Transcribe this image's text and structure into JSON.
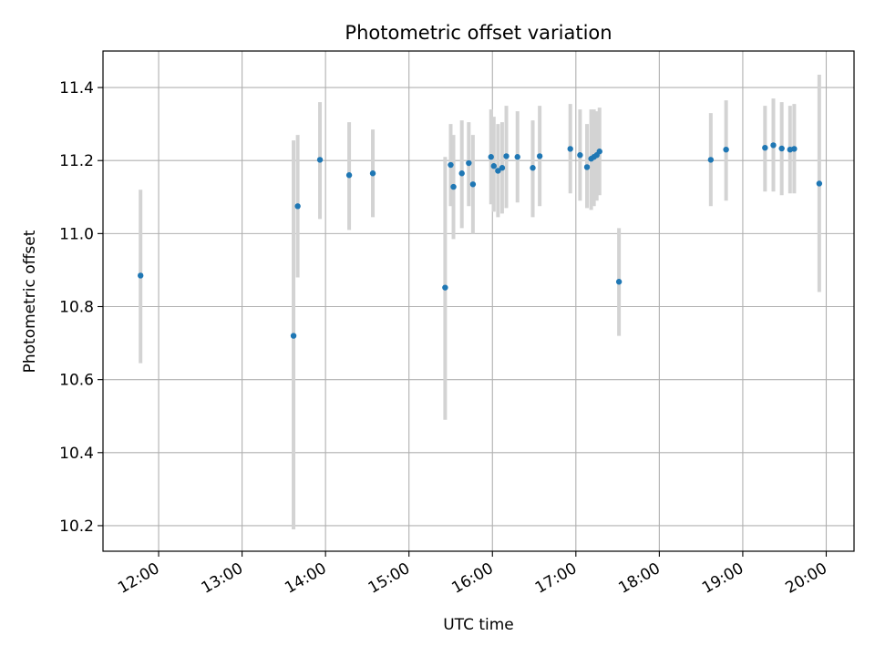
{
  "chart_data": {
    "type": "scatter",
    "title": "Photometric offset variation",
    "xlabel": "UTC time",
    "ylabel": "Photometric offset",
    "x_axis_type": "time",
    "xlim": [
      "11:20",
      "20:20"
    ],
    "ylim": [
      10.13,
      11.5
    ],
    "grid": true,
    "x_ticks": [
      "12:00",
      "13:00",
      "14:00",
      "15:00",
      "16:00",
      "17:00",
      "18:00",
      "19:00",
      "20:00"
    ],
    "y_ticks": [
      "10.2",
      "10.4",
      "10.6",
      "10.8",
      "11.0",
      "11.2",
      "11.4"
    ],
    "colors": {
      "point": "#1f77b4",
      "errorbar": "#d3d3d3",
      "grid": "#b0b0b0"
    },
    "series": [
      {
        "points": [
          {
            "t": "11:47",
            "y": 10.885,
            "ylo": 10.645,
            "yhi": 11.12
          },
          {
            "t": "13:37",
            "y": 10.72,
            "ylo": 10.19,
            "yhi": 11.255
          },
          {
            "t": "13:40",
            "y": 11.075,
            "ylo": 10.88,
            "yhi": 11.27
          },
          {
            "t": "13:56",
            "y": 11.202,
            "ylo": 11.04,
            "yhi": 11.36
          },
          {
            "t": "14:17",
            "y": 11.16,
            "ylo": 11.01,
            "yhi": 11.305
          },
          {
            "t": "14:34",
            "y": 11.165,
            "ylo": 11.045,
            "yhi": 11.285
          },
          {
            "t": "15:26",
            "y": 10.852,
            "ylo": 10.49,
            "yhi": 11.21
          },
          {
            "t": "15:30",
            "y": 11.188,
            "ylo": 11.075,
            "yhi": 11.3
          },
          {
            "t": "15:32",
            "y": 11.128,
            "ylo": 10.985,
            "yhi": 11.27
          },
          {
            "t": "15:38",
            "y": 11.165,
            "ylo": 11.015,
            "yhi": 11.31
          },
          {
            "t": "15:43",
            "y": 11.193,
            "ylo": 11.075,
            "yhi": 11.305
          },
          {
            "t": "15:46",
            "y": 11.135,
            "ylo": 11.0,
            "yhi": 11.27
          },
          {
            "t": "15:59",
            "y": 11.21,
            "ylo": 11.08,
            "yhi": 11.34
          },
          {
            "t": "16:01",
            "y": 11.185,
            "ylo": 11.06,
            "yhi": 11.32
          },
          {
            "t": "16:04",
            "y": 11.172,
            "ylo": 11.045,
            "yhi": 11.3
          },
          {
            "t": "16:07",
            "y": 11.18,
            "ylo": 11.055,
            "yhi": 11.305
          },
          {
            "t": "16:10",
            "y": 11.212,
            "ylo": 11.07,
            "yhi": 11.35
          },
          {
            "t": "16:18",
            "y": 11.21,
            "ylo": 11.085,
            "yhi": 11.335
          },
          {
            "t": "16:29",
            "y": 11.18,
            "ylo": 11.045,
            "yhi": 11.31
          },
          {
            "t": "16:34",
            "y": 11.212,
            "ylo": 11.075,
            "yhi": 11.35
          },
          {
            "t": "16:56",
            "y": 11.232,
            "ylo": 11.11,
            "yhi": 11.355
          },
          {
            "t": "17:03",
            "y": 11.215,
            "ylo": 11.09,
            "yhi": 11.34
          },
          {
            "t": "17:08",
            "y": 11.182,
            "ylo": 11.07,
            "yhi": 11.3
          },
          {
            "t": "17:11",
            "y": 11.205,
            "ylo": 11.065,
            "yhi": 11.34
          },
          {
            "t": "17:13",
            "y": 11.21,
            "ylo": 11.075,
            "yhi": 11.34
          },
          {
            "t": "17:15",
            "y": 11.215,
            "ylo": 11.09,
            "yhi": 11.335
          },
          {
            "t": "17:17",
            "y": 11.225,
            "ylo": 11.105,
            "yhi": 11.345
          },
          {
            "t": "17:31",
            "y": 10.868,
            "ylo": 10.72,
            "yhi": 11.015
          },
          {
            "t": "18:37",
            "y": 11.202,
            "ylo": 11.075,
            "yhi": 11.33
          },
          {
            "t": "18:48",
            "y": 11.23,
            "ylo": 11.09,
            "yhi": 11.365
          },
          {
            "t": "19:16",
            "y": 11.235,
            "ylo": 11.115,
            "yhi": 11.35
          },
          {
            "t": "19:22",
            "y": 11.242,
            "ylo": 11.115,
            "yhi": 11.37
          },
          {
            "t": "19:28",
            "y": 11.233,
            "ylo": 11.105,
            "yhi": 11.36
          },
          {
            "t": "19:34",
            "y": 11.23,
            "ylo": 11.11,
            "yhi": 11.35
          },
          {
            "t": "19:37",
            "y": 11.232,
            "ylo": 11.11,
            "yhi": 11.355
          },
          {
            "t": "19:55",
            "y": 11.137,
            "ylo": 10.84,
            "yhi": 11.435
          }
        ]
      }
    ]
  }
}
